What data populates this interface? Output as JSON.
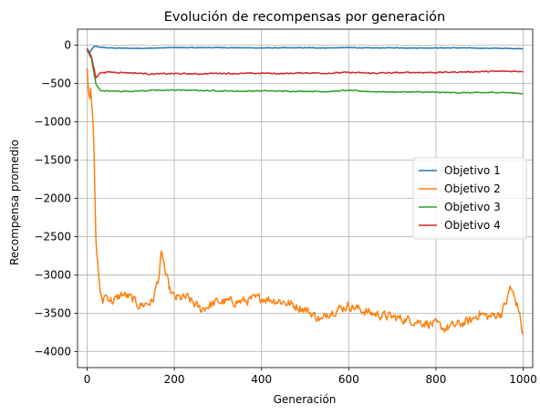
{
  "chart_data": {
    "type": "line",
    "title": "Evolución de recompensas por generación",
    "xlabel": "Generación",
    "ylabel": "Recompensa promedio",
    "xlim": [
      -22,
      1022
    ],
    "ylim": [
      -4210,
      210
    ],
    "xticks": [
      0,
      200,
      400,
      600,
      800,
      1000
    ],
    "yticks": [
      0,
      -500,
      -1000,
      -1500,
      -2000,
      -2500,
      -3000,
      -3500,
      -4000
    ],
    "grid": true,
    "legend_position": "center-right",
    "series": [
      {
        "name": "Objetivo 1",
        "color": "#1f77b4",
        "x": [
          0,
          5,
          10,
          15,
          20,
          30,
          50,
          100,
          150,
          200,
          250,
          300,
          350,
          400,
          450,
          500,
          550,
          600,
          650,
          700,
          750,
          800,
          850,
          900,
          950,
          1000
        ],
        "values": [
          -40,
          -100,
          -60,
          -20,
          -15,
          -25,
          -35,
          -40,
          -38,
          -30,
          -32,
          -30,
          -33,
          -35,
          -34,
          -33,
          -35,
          -30,
          -36,
          -33,
          -36,
          -35,
          -34,
          -38,
          -40,
          -45
        ],
        "noise": 5
      },
      {
        "name": "Objetivo 2",
        "color": "#ff7f0e",
        "x": [
          0,
          5,
          8,
          12,
          15,
          18,
          20,
          25,
          30,
          35,
          40,
          50,
          60,
          80,
          100,
          120,
          150,
          165,
          170,
          175,
          180,
          190,
          200,
          230,
          260,
          300,
          350,
          400,
          450,
          500,
          540,
          550,
          600,
          650,
          700,
          750,
          800,
          820,
          850,
          880,
          900,
          920,
          950,
          965,
          970,
          980,
          990,
          1000
        ],
        "values": [
          -300,
          -700,
          -500,
          -900,
          -1200,
          -2000,
          -2550,
          -2900,
          -3200,
          -3400,
          -3250,
          -3300,
          -3350,
          -3250,
          -3300,
          -3400,
          -3350,
          -3000,
          -2750,
          -2800,
          -3000,
          -3200,
          -3300,
          -3300,
          -3450,
          -3350,
          -3350,
          -3300,
          -3350,
          -3450,
          -3600,
          -3500,
          -3400,
          -3500,
          -3550,
          -3600,
          -3650,
          -3700,
          -3650,
          -3600,
          -3500,
          -3550,
          -3500,
          -3300,
          -3150,
          -3300,
          -3450,
          -3800
        ],
        "noise": 90
      },
      {
        "name": "Objetivo 3",
        "color": "#2ca02c",
        "x": [
          0,
          10,
          20,
          30,
          50,
          100,
          150,
          200,
          250,
          300,
          350,
          400,
          450,
          500,
          550,
          600,
          650,
          700,
          750,
          800,
          850,
          900,
          950,
          1000
        ],
        "values": [
          -60,
          -180,
          -500,
          -590,
          -600,
          -600,
          -590,
          -585,
          -590,
          -595,
          -600,
          -595,
          -600,
          -600,
          -605,
          -590,
          -605,
          -610,
          -610,
          -615,
          -620,
          -620,
          -615,
          -630
        ],
        "noise": 10
      },
      {
        "name": "Objetivo 4",
        "color": "#d62728",
        "x": [
          0,
          10,
          20,
          30,
          50,
          100,
          150,
          200,
          250,
          300,
          350,
          400,
          450,
          500,
          550,
          600,
          650,
          700,
          750,
          800,
          850,
          900,
          950,
          1000
        ],
        "values": [
          -50,
          -150,
          -420,
          -360,
          -350,
          -360,
          -375,
          -370,
          -375,
          -365,
          -370,
          -365,
          -370,
          -360,
          -365,
          -355,
          -365,
          -360,
          -355,
          -355,
          -350,
          -345,
          -340,
          -340
        ],
        "noise": 12
      }
    ]
  }
}
